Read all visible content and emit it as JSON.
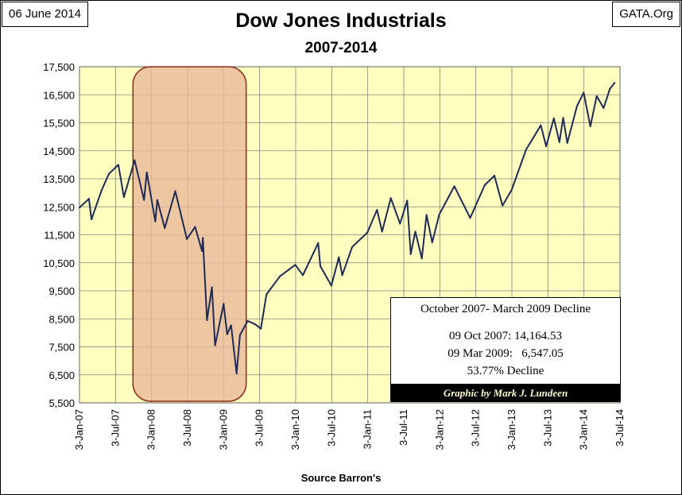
{
  "header": {
    "date": "06 June 2014",
    "site": "GATA.Org"
  },
  "annotation": {
    "heading": "October 2007- March 2009 Decline",
    "line1": "09 Oct 2007: 14,164.53",
    "line2": "09 Mar 2009:   6,547.05",
    "line3": "53.77% Decline"
  },
  "credit": "Graphic by Mark J. Lundeen",
  "colors": {
    "plot_background": "#FFFFC0",
    "line": "#1F2A55",
    "highlight_fill": "#E8B89A",
    "highlight_border": "#8B2E1A",
    "grid": "#808080"
  },
  "chart_data": {
    "type": "line",
    "title": "Dow Jones Industrials",
    "subtitle": "2007-2014",
    "xlabel": "Source Barron's",
    "ylabel": "",
    "x_tick_labels": [
      "3-Jan-07",
      "3-Jul-07",
      "3-Jan-08",
      "3-Jul-08",
      "3-Jan-09",
      "3-Jul-09",
      "3-Jan-10",
      "3-Jul-10",
      "3-Jan-11",
      "3-Jul-11",
      "3-Jan-12",
      "3-Jul-12",
      "3-Jan-13",
      "3-Jul-13",
      "3-Jan-14",
      "3-Jul-14"
    ],
    "y_tick_labels": [
      "5,500",
      "6,500",
      "7,500",
      "8,500",
      "9,500",
      "10,500",
      "11,500",
      "12,500",
      "13,500",
      "14,500",
      "15,500",
      "16,500",
      "17,500"
    ],
    "ylim": [
      5500,
      17500
    ],
    "xlim": [
      "2007-01-03",
      "2014-07-03"
    ],
    "grid": true,
    "highlight_range": [
      "2007-10-09",
      "2009-03-09"
    ],
    "series": [
      {
        "x": [
          "2007-01-03",
          "2007-02-20",
          "2007-03-05",
          "2007-04-25",
          "2007-06-01",
          "2007-07-19",
          "2007-08-16",
          "2007-10-09",
          "2007-11-26",
          "2007-12-10",
          "2008-01-22",
          "2008-02-01",
          "2008-03-10",
          "2008-05-02",
          "2008-06-30",
          "2008-08-11",
          "2008-09-15",
          "2008-09-19",
          "2008-10-10",
          "2008-11-04",
          "2008-11-20",
          "2009-01-02",
          "2009-01-20",
          "2009-02-09",
          "2009-03-09",
          "2009-03-26",
          "2009-05-04",
          "2009-06-12",
          "2009-07-10",
          "2009-08-07",
          "2009-10-14",
          "2009-12-31",
          "2010-02-08",
          "2010-04-26",
          "2010-05-07",
          "2010-07-02",
          "2010-08-09",
          "2010-08-26",
          "2010-10-15",
          "2010-12-31",
          "2011-02-18",
          "2011-03-16",
          "2011-04-29",
          "2011-06-15",
          "2011-07-21",
          "2011-08-08",
          "2011-08-31",
          "2011-10-03",
          "2011-10-27",
          "2011-11-25",
          "2011-12-30",
          "2012-03-16",
          "2012-06-04",
          "2012-08-17",
          "2012-10-05",
          "2012-11-15",
          "2012-12-31",
          "2013-03-14",
          "2013-05-28",
          "2013-06-24",
          "2013-08-02",
          "2013-08-30",
          "2013-09-18",
          "2013-10-09",
          "2013-11-27",
          "2013-12-31",
          "2014-02-03",
          "2014-03-07",
          "2014-04-11",
          "2014-05-13",
          "2014-06-06"
        ],
        "y": [
          12474,
          12786,
          12050,
          13090,
          13676,
          14000,
          12845,
          14164,
          12743,
          13727,
          11971,
          12743,
          11740,
          13058,
          11350,
          11782,
          10917,
          11388,
          8451,
          9625,
          7552,
          9034,
          7949,
          8270,
          6547,
          7924,
          8426,
          8299,
          8146,
          9370,
          10015,
          10428,
          10058,
          11205,
          10380,
          9686,
          10698,
          10060,
          11062,
          11577,
          12391,
          11613,
          12810,
          11898,
          12724,
          10810,
          11613,
          10655,
          12208,
          11231,
          12217,
          13232,
          12101,
          13275,
          13610,
          12542,
          13104,
          14539,
          15409,
          14659,
          15658,
          14810,
          15676,
          14776,
          16097,
          16576,
          15372,
          16452,
          16026,
          16715,
          16924
        ]
      }
    ]
  }
}
